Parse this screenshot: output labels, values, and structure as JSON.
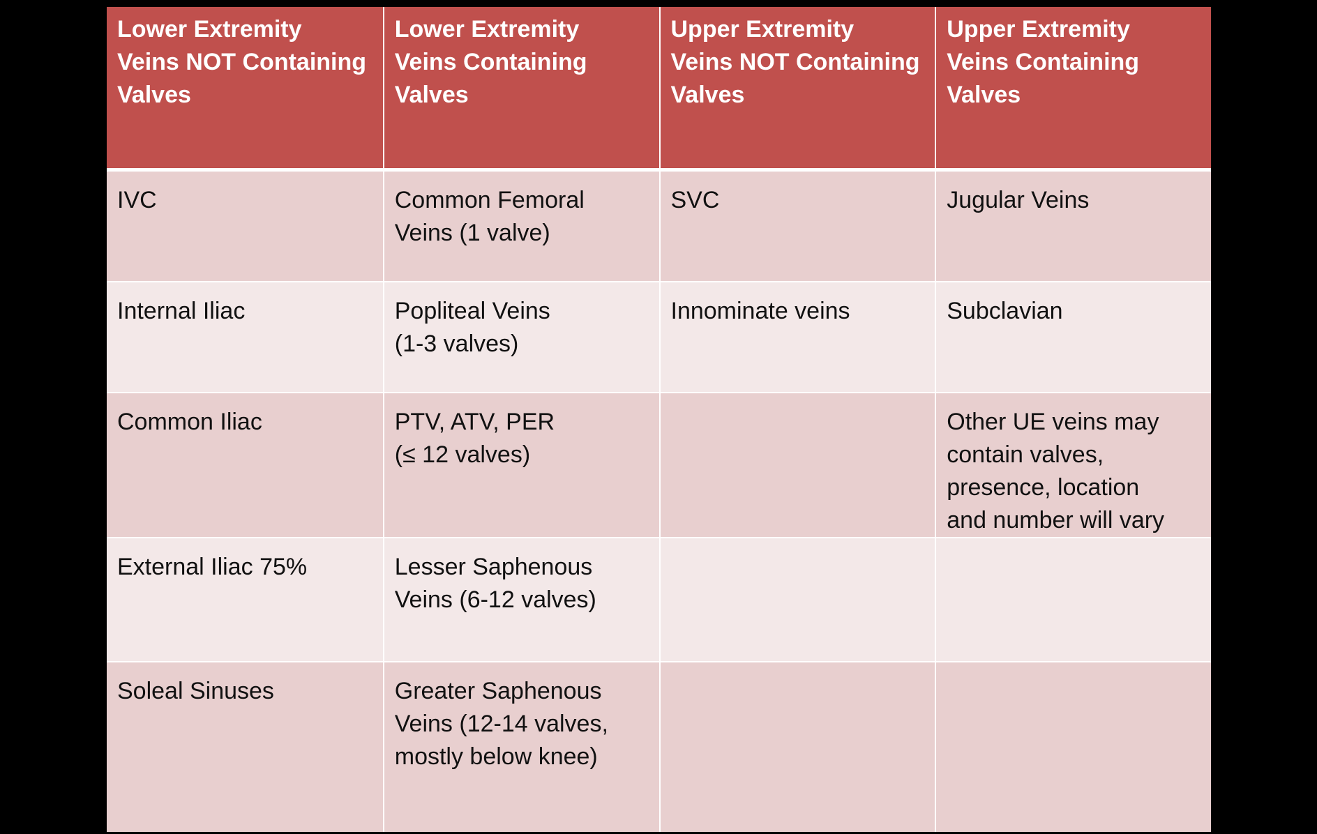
{
  "table": {
    "headers": [
      [
        "Lower Extremity",
        "Veins NOT Containing",
        "Valves"
      ],
      [
        "Lower Extremity",
        "Veins Containing",
        "Valves"
      ],
      [
        "Upper Extremity",
        "Veins NOT Containing",
        "Valves"
      ],
      [
        "Upper Extremity",
        "Veins Containing",
        "Valves"
      ]
    ],
    "rows": [
      {
        "lower_no_valves": [
          "IVC"
        ],
        "lower_valves": [
          "Common Femoral",
          "Veins (1 valve)"
        ],
        "upper_no_valves": [
          "SVC"
        ],
        "upper_valves": [
          "Jugular Veins"
        ]
      },
      {
        "lower_no_valves": [
          "Internal Iliac"
        ],
        "lower_valves": [
          "Popliteal Veins",
          "(1-3 valves)"
        ],
        "upper_no_valves": [
          "Innominate veins"
        ],
        "upper_valves": [
          "Subclavian"
        ]
      },
      {
        "lower_no_valves": [
          "Common Iliac"
        ],
        "lower_valves": [
          "PTV, ATV, PER",
          "(≤ 12 valves)"
        ],
        "upper_no_valves": [],
        "upper_valves": [
          "Other UE veins may",
          "contain valves,",
          "presence, location",
          "and number will vary"
        ]
      },
      {
        "lower_no_valves": [
          "External Iliac 75%"
        ],
        "lower_valves": [
          "Lesser Saphenous",
          "Veins (6-12 valves)"
        ],
        "upper_no_valves": [],
        "upper_valves": []
      },
      {
        "lower_no_valves": [
          "Soleal Sinuses"
        ],
        "lower_valves": [
          "Greater Saphenous",
          "Veins (12-14 valves,",
          "mostly below knee)"
        ],
        "upper_no_valves": [],
        "upper_valves": []
      }
    ]
  },
  "colors": {
    "header_bg": "#c0504d",
    "header_text": "#ffffff",
    "row_odd_bg": "#e8cfcf",
    "row_even_bg": "#f3e8e8",
    "frame_bg": "#000000"
  }
}
